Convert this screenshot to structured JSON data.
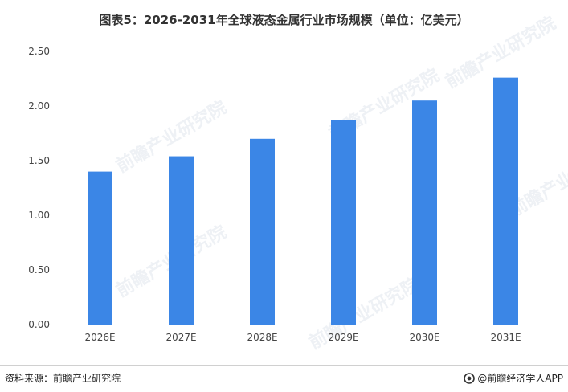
{
  "chart_data": {
    "type": "bar",
    "title": "图表5：2026-2031年全球液态金属行业市场规模（单位：亿美元）",
    "categories": [
      "2026E",
      "2027E",
      "2028E",
      "2029E",
      "2030E",
      "2031E"
    ],
    "values": [
      1.4,
      1.54,
      1.7,
      1.87,
      2.05,
      2.26
    ],
    "yticks": [
      "0.00",
      "0.50",
      "1.00",
      "1.50",
      "2.00",
      "2.50"
    ],
    "ylim": [
      0,
      2.5
    ],
    "xlabel": "",
    "ylabel": "",
    "grid": false,
    "legend": "none",
    "bar_color": "#3b86e6"
  },
  "source": "资料来源：前瞻产业研究院",
  "brand": "@前瞻经济学人APP",
  "watermark": "前瞻产业研究院",
  "icons": {
    "brand_logo": "qianzhan-logo-icon"
  }
}
